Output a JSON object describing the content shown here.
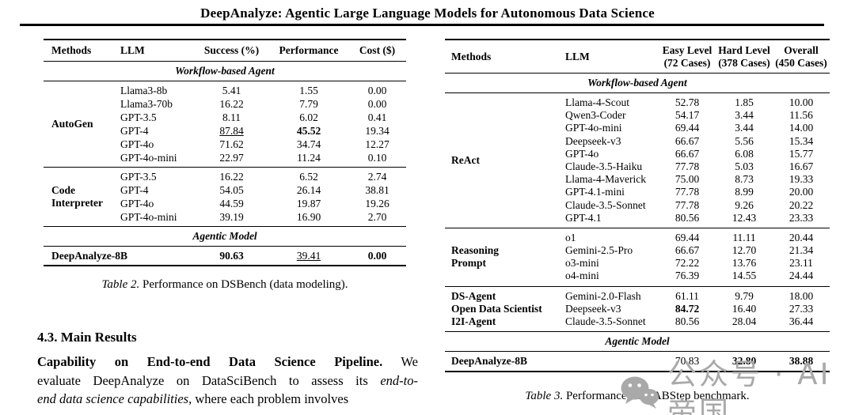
{
  "header": {
    "title": "DeepAnalyze: Agentic Large Language Models for Autonomous Data Science"
  },
  "table2": {
    "columns": [
      [
        "Methods"
      ],
      [
        "LLM"
      ],
      [
        "Success (%)"
      ],
      [
        "Performance"
      ],
      [
        "Cost ($)"
      ]
    ],
    "sections": [
      {
        "header": "Workflow-based Agent",
        "groups": [
          {
            "method": "AutoGen",
            "rows": [
              {
                "llm": "Llama3-8b",
                "cells": [
                  "5.41",
                  "1.55",
                  "0.00"
                ]
              },
              {
                "llm": "Llama3-70b",
                "cells": [
                  "16.22",
                  "7.79",
                  "0.00"
                ]
              },
              {
                "llm": "GPT-3.5",
                "cells": [
                  "8.11",
                  "6.02",
                  "0.41"
                ]
              },
              {
                "llm": "GPT-4",
                "cells": [
                  {
                    "t": "87.84",
                    "u": true
                  },
                  {
                    "t": "45.52",
                    "b": true
                  },
                  "19.34"
                ]
              },
              {
                "llm": "GPT-4o",
                "cells": [
                  "71.62",
                  "34.74",
                  "12.27"
                ]
              },
              {
                "llm": "GPT-4o-mini",
                "cells": [
                  "22.97",
                  "11.24",
                  "0.10"
                ]
              }
            ]
          },
          {
            "method": "Code\nInterpreter",
            "rows": [
              {
                "llm": "GPT-3.5",
                "cells": [
                  "16.22",
                  "6.52",
                  "2.74"
                ]
              },
              {
                "llm": "GPT-4",
                "cells": [
                  "54.05",
                  "26.14",
                  "38.81"
                ]
              },
              {
                "llm": "GPT-4o",
                "cells": [
                  "44.59",
                  "19.87",
                  "19.26"
                ]
              },
              {
                "llm": "GPT-4o-mini",
                "cells": [
                  "39.19",
                  "16.90",
                  "2.70"
                ]
              }
            ]
          }
        ]
      },
      {
        "header": "Agentic Model",
        "groups": [
          {
            "rows": [
              {
                "method": "DeepAnalyze-8B",
                "llm": "",
                "cells": [
                  {
                    "t": "90.63",
                    "b": true
                  },
                  {
                    "t": "39.41",
                    "u": true
                  },
                  {
                    "t": "0.00",
                    "b": true
                  }
                ]
              }
            ]
          }
        ]
      }
    ],
    "caption_label": "Table 2.",
    "caption_text": " Performance on DSBench (data modeling)."
  },
  "table3": {
    "columns": [
      [
        "Methods"
      ],
      [
        "LLM"
      ],
      [
        "Easy Level",
        "(72 Cases)"
      ],
      [
        "Hard Level",
        "(378 Cases)"
      ],
      [
        "Overall",
        "(450 Cases)"
      ]
    ],
    "sections": [
      {
        "header": "Workflow-based Agent",
        "groups": [
          {
            "method": "ReAct",
            "rows": [
              {
                "llm": "Llama-4-Scout",
                "cells": [
                  "52.78",
                  "1.85",
                  "10.00"
                ]
              },
              {
                "llm": "Qwen3-Coder",
                "cells": [
                  "54.17",
                  "3.44",
                  "11.56"
                ]
              },
              {
                "llm": "GPT-4o-mini",
                "cells": [
                  "69.44",
                  "3.44",
                  "14.00"
                ]
              },
              {
                "llm": "Deepseek-v3",
                "cells": [
                  "66.67",
                  "5.56",
                  "15.34"
                ]
              },
              {
                "llm": "GPT-4o",
                "cells": [
                  "66.67",
                  "6.08",
                  "15.77"
                ]
              },
              {
                "llm": "Claude-3.5-Haiku",
                "cells": [
                  "77.78",
                  "5.03",
                  "16.67"
                ]
              },
              {
                "llm": "Llama-4-Maverick",
                "cells": [
                  "75.00",
                  "8.73",
                  "19.33"
                ]
              },
              {
                "llm": "GPT-4.1-mini",
                "cells": [
                  "77.78",
                  "8.99",
                  "20.00"
                ]
              },
              {
                "llm": "Claude-3.5-Sonnet",
                "cells": [
                  "77.78",
                  "9.26",
                  "20.22"
                ]
              },
              {
                "llm": "GPT-4.1",
                "cells": [
                  "80.56",
                  "12.43",
                  "23.33"
                ]
              }
            ]
          },
          {
            "method": "Reasoning\nPrompt",
            "rows": [
              {
                "llm": "o1",
                "cells": [
                  "69.44",
                  "11.11",
                  "20.44"
                ]
              },
              {
                "llm": "Gemini-2.5-Pro",
                "cells": [
                  "66.67",
                  "12.70",
                  "21.34"
                ]
              },
              {
                "llm": "o3-mini",
                "cells": [
                  "72.22",
                  "13.76",
                  "23.11"
                ]
              },
              {
                "llm": "o4-mini",
                "cells": [
                  "76.39",
                  "14.55",
                  "24.44"
                ]
              }
            ]
          },
          {
            "rows": [
              {
                "method": "DS-Agent",
                "llm": "Gemini-2.0-Flash",
                "cells": [
                  "61.11",
                  "9.79",
                  "18.00"
                ]
              },
              {
                "method": "Open Data Scientist",
                "llm": "Deepseek-v3",
                "cells": [
                  {
                    "t": "84.72",
                    "b": true
                  },
                  "16.40",
                  "27.33"
                ]
              },
              {
                "method": "I2I-Agent",
                "llm": "Claude-3.5-Sonnet",
                "cells": [
                  "80.56",
                  "28.04",
                  "36.44"
                ]
              }
            ]
          }
        ]
      },
      {
        "header": "Agentic Model",
        "groups": [
          {
            "rows": [
              {
                "method": "DeepAnalyze-8B",
                "llm": "",
                "cells": [
                  "70.83",
                  {
                    "t": "32.80",
                    "b": true
                  },
                  {
                    "t": "38.88",
                    "b": true
                  }
                ]
              }
            ]
          }
        ]
      }
    ],
    "caption_label": "Table 3.",
    "caption_text": " Performance on DABStep benchmark."
  },
  "body": {
    "section_heading": "4.3. Main Results",
    "paragraph_lines": [
      [
        {
          "t": "Capability on End-to-end Data Science Pipeline.",
          "b": true
        },
        {
          "t": "   We"
        }
      ],
      [
        {
          "t": "evaluate DeepAnalyze on DataSciBench to assess its "
        },
        {
          "t": "end-to-",
          "i": true
        }
      ],
      [
        {
          "t": "end data science capabilities",
          "i": true
        },
        {
          "t": ", where each problem involves"
        }
      ]
    ]
  },
  "watermark": {
    "text": "公众号 · AI帝国",
    "color": "#a9a9a9"
  }
}
